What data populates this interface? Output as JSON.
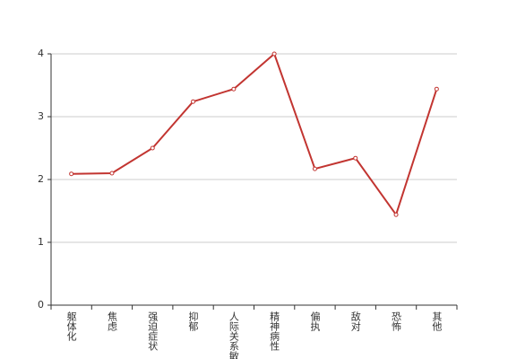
{
  "chart_data": {
    "type": "line",
    "categories": [
      "躯体化",
      "焦虑",
      "强迫症状",
      "抑郁",
      "人际关系敏感",
      "精神病性",
      "偏执",
      "敌对",
      "恐怖",
      "其他"
    ],
    "series": [
      {
        "color": "#c23531",
        "values": [
          2.09,
          2.1,
          2.5,
          3.24,
          3.44,
          4.0,
          2.17,
          2.34,
          1.44,
          3.44
        ]
      }
    ],
    "ylim": [
      0,
      4
    ],
    "yticks": [
      0,
      1,
      2,
      3,
      4
    ],
    "grid": true
  }
}
